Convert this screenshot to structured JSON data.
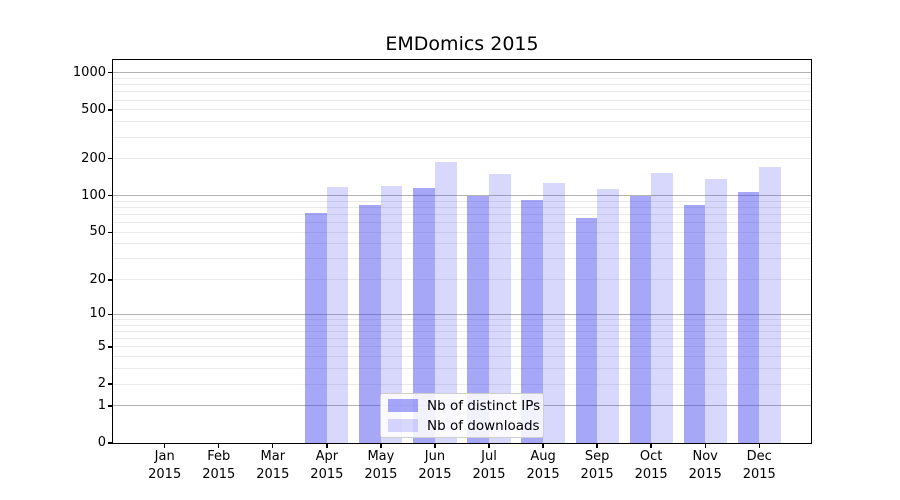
{
  "chart_data": {
    "type": "bar",
    "title": "EMDomics 2015",
    "categories": [
      "Jan 2015",
      "Feb 2015",
      "Mar 2015",
      "Apr 2015",
      "May 2015",
      "Jun 2015",
      "Jul 2015",
      "Aug 2015",
      "Sep 2015",
      "Oct 2015",
      "Nov 2015",
      "Dec 2015"
    ],
    "months": [
      "Jan",
      "Feb",
      "Mar",
      "Apr",
      "May",
      "Jun",
      "Jul",
      "Aug",
      "Sep",
      "Oct",
      "Nov",
      "Dec"
    ],
    "year_label": "2015",
    "series": [
      {
        "name": "Nb of distinct IPs",
        "color": "rgba(60,60,240,0.45)",
        "color_on_white": "#a9a9f6",
        "values": [
          null,
          null,
          null,
          72,
          84,
          115,
          100,
          92,
          66,
          100,
          84,
          107
        ]
      },
      {
        "name": "Nb of downloads",
        "color": "rgba(60,60,240,0.20)",
        "color_on_white": "#dcdcfa",
        "values": [
          null,
          null,
          null,
          118,
          120,
          188,
          151,
          126,
          113,
          153,
          137,
          171
        ]
      }
    ],
    "yticks": [
      1000,
      500,
      200,
      100,
      50,
      20,
      10,
      5,
      2,
      1,
      0
    ],
    "yticklabels": [
      "1000",
      "500",
      "200",
      "100",
      "50",
      "20",
      "10",
      "5",
      "2",
      "1",
      "0"
    ],
    "scale": "log10(1+x)",
    "ylim": [
      0,
      1280
    ],
    "grid": "horizontal major+minor",
    "legend_position": "lower center",
    "colors": {
      "grid_major": "#b3b3b3",
      "grid_minor": "#eaeaea",
      "axis": "#000000",
      "background": "#ffffff"
    }
  }
}
